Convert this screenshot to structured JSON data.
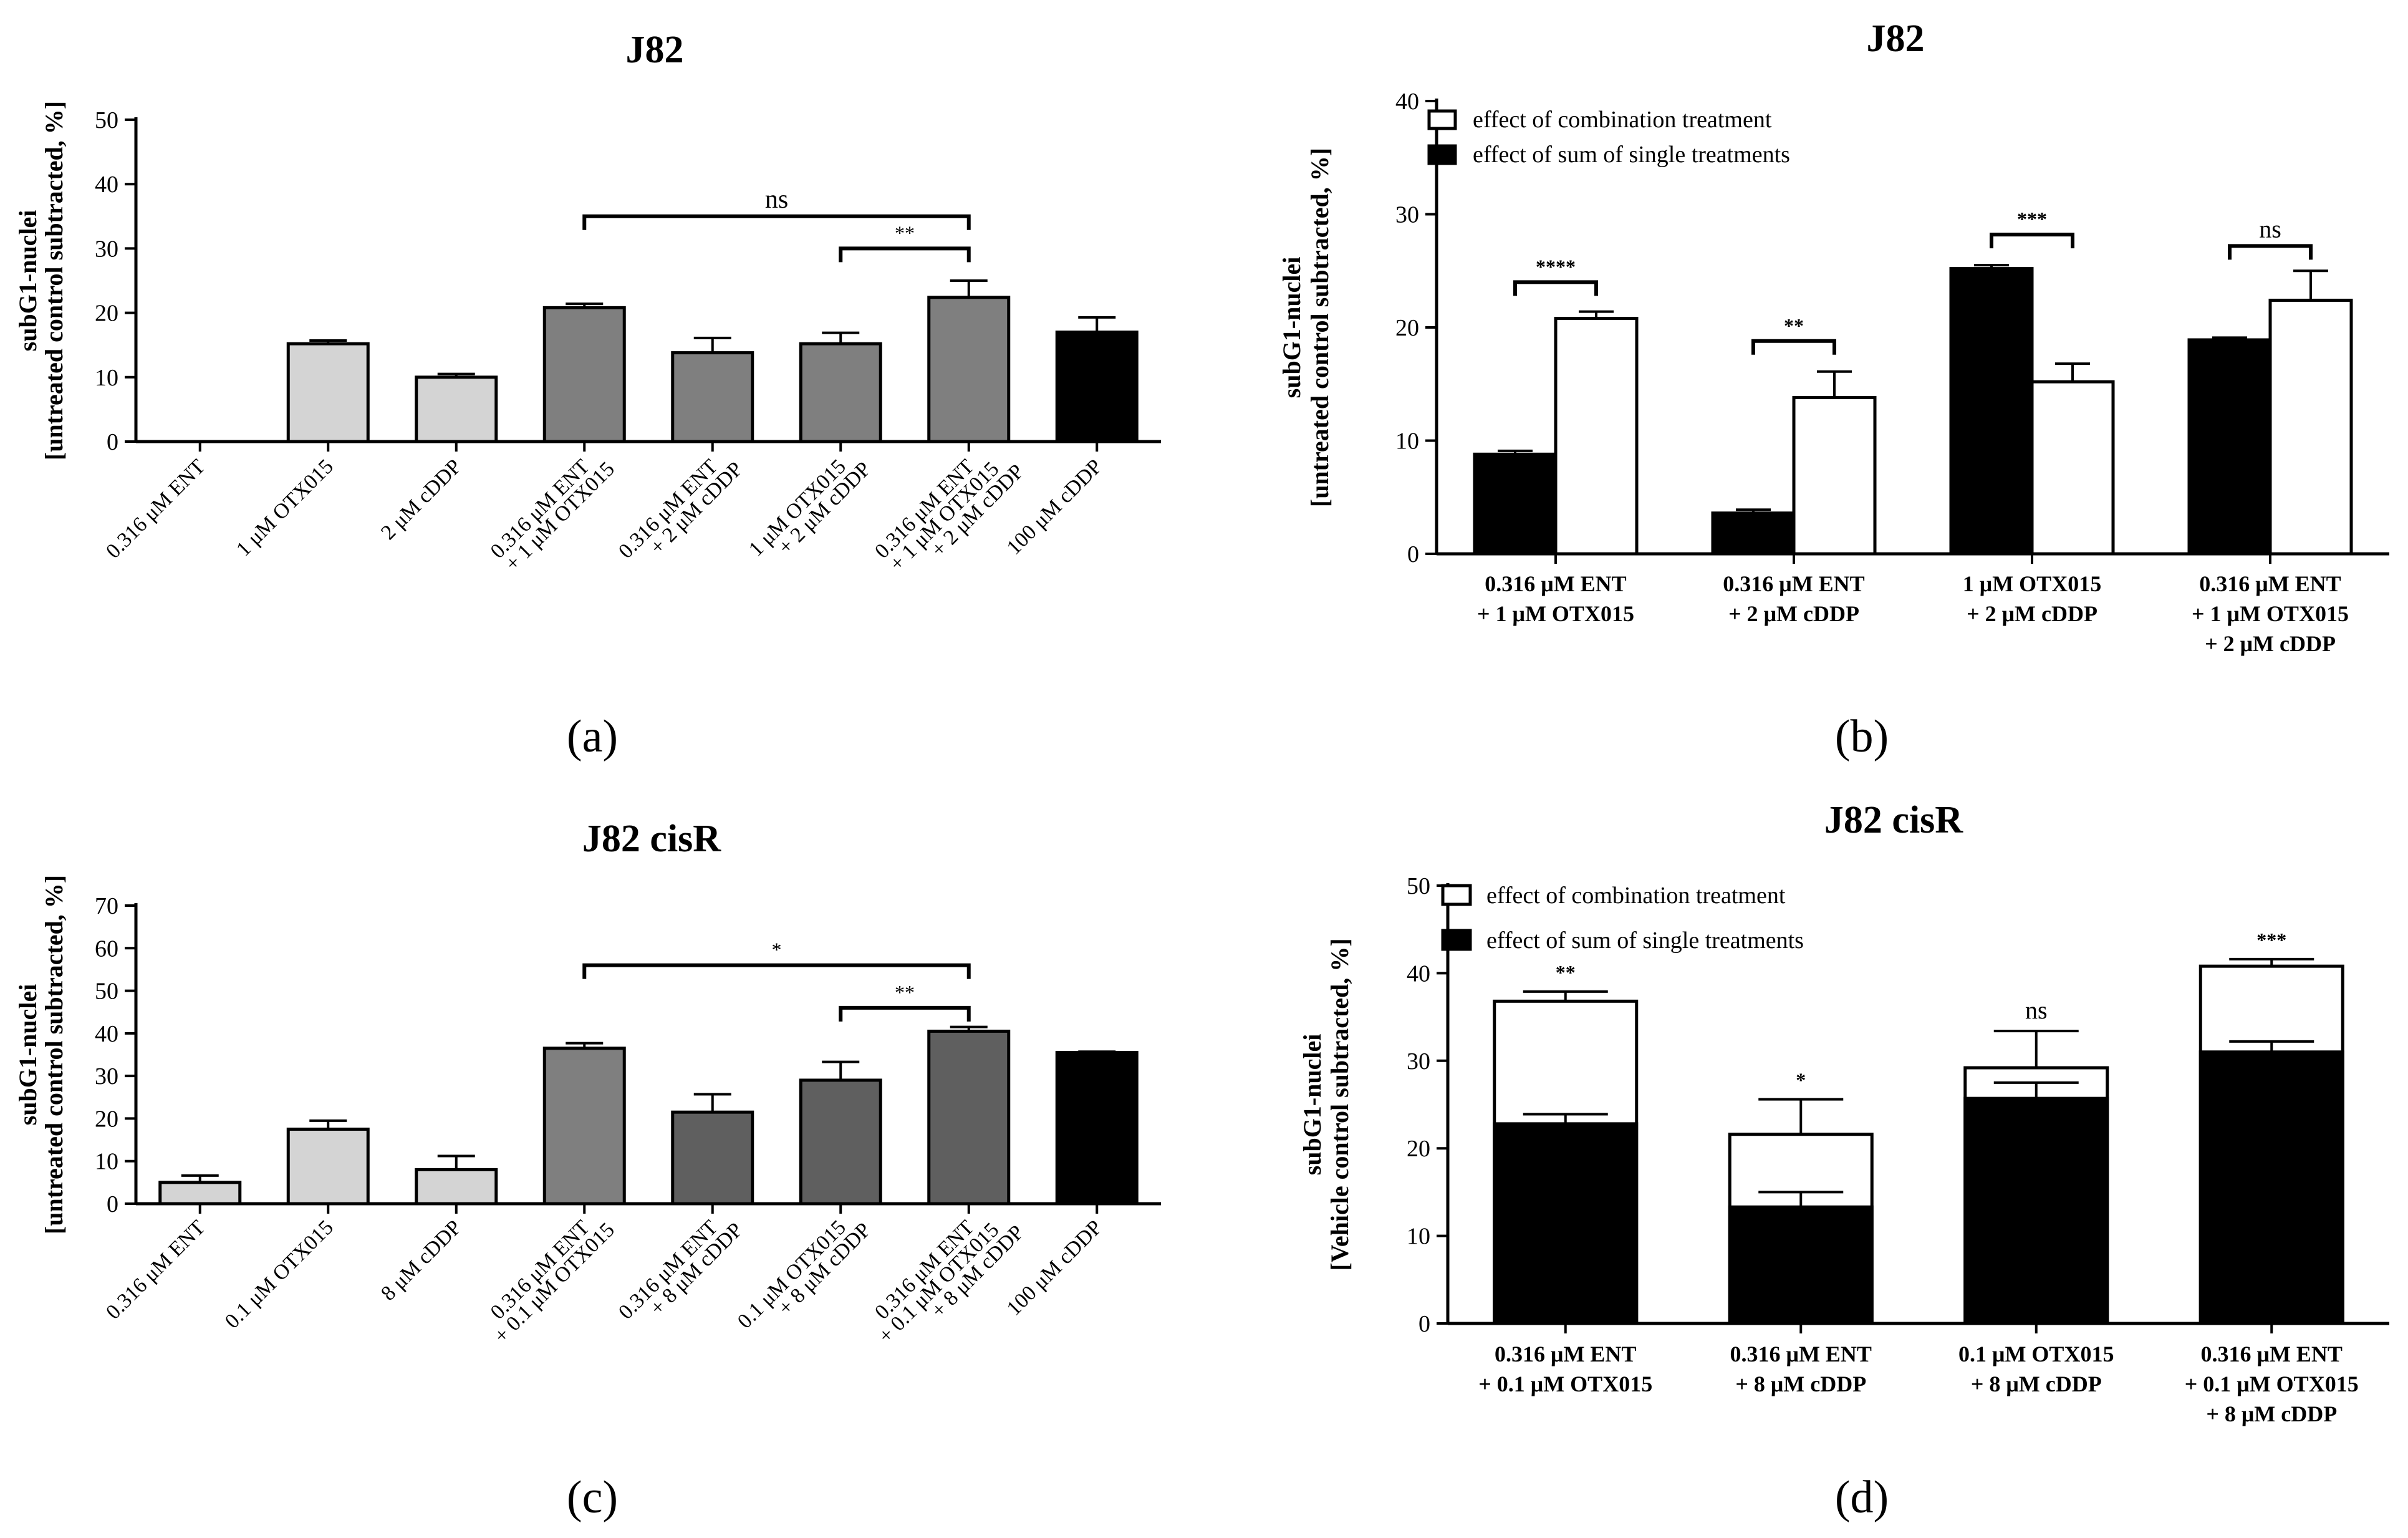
{
  "chart_data": [
    {
      "type": "bar",
      "panel_label": "(a)",
      "title": "J82",
      "ylabel": [
        "subG1-nuclei",
        "[untreated control subtracted, %]"
      ],
      "ylim": [
        0,
        50
      ],
      "yticks": [
        0,
        10,
        20,
        30,
        40,
        50
      ],
      "categories": [
        [
          "0.316 μM ENT"
        ],
        [
          "1 μM OTX015"
        ],
        [
          "2 μM cDDP"
        ],
        [
          "0.316 μM ENT",
          "+ 1 μM OTX015"
        ],
        [
          "0.316 μM ENT",
          "+ 2 μM cDDP"
        ],
        [
          "1 μM OTX015",
          "+ 2 μM cDDP"
        ],
        [
          "0.316 μM ENT",
          "+ 1 μM OTX015",
          "+ 2 μM cDDP"
        ],
        [
          "100 μM cDDP"
        ]
      ],
      "values": [
        0,
        15.2,
        10,
        20.8,
        13.8,
        15.2,
        22.4,
        17
      ],
      "errors": [
        0,
        0.5,
        0.5,
        0.6,
        2.3,
        1.7,
        2.6,
        2.3
      ],
      "colors": [
        "#d4d4d4",
        "#d4d4d4",
        "#d4d4d4",
        "#7f7f7f",
        "#7f7f7f",
        "#7f7f7f",
        "#7f7f7f",
        "#000000"
      ],
      "significance": [
        {
          "from": 3,
          "to": 6,
          "y": 35,
          "label": "ns"
        },
        {
          "from": 5,
          "to": 6,
          "y": 30,
          "label": "**"
        }
      ]
    },
    {
      "type": "bar",
      "panel_label": "(b)",
      "title": "J82",
      "ylabel": [
        "subG1-nuclei",
        "[untreated control subtracted, %]"
      ],
      "ylim": [
        0,
        40
      ],
      "yticks": [
        0,
        10,
        20,
        30,
        40
      ],
      "legend_position": "top-left",
      "categories": [
        [
          "0.316 μM ENT",
          "+ 1 μM OTX015"
        ],
        [
          "0.316 μM ENT",
          "+ 2 μM cDDP"
        ],
        [
          "1 μM OTX015",
          "+ 2 μM cDDP"
        ],
        [
          "0.316 μM ENT",
          "+ 1 μM OTX015",
          "+ 2 μM cDDP"
        ]
      ],
      "series": [
        {
          "name": "effect of sum of single treatments",
          "color": "#000000",
          "values": [
            8.8,
            3.6,
            25.2,
            18.9
          ],
          "errors": [
            0.3,
            0.3,
            0.3,
            0.2
          ]
        },
        {
          "name": "effect of combination treatment",
          "color": "#ffffff",
          "values": [
            20.8,
            13.8,
            15.2,
            22.4
          ],
          "errors": [
            0.6,
            2.3,
            1.6,
            2.6
          ]
        }
      ],
      "legend_order": [
        1,
        0
      ],
      "significance": [
        {
          "group": 0,
          "y": 24,
          "label": "****"
        },
        {
          "group": 1,
          "y": 18.8,
          "label": "**"
        },
        {
          "group": 2,
          "y": 28.2,
          "label": "***"
        },
        {
          "group": 3,
          "y": 27.2,
          "label": "ns"
        }
      ]
    },
    {
      "type": "bar",
      "panel_label": "(c)",
      "title": "J82 cisR",
      "ylabel": [
        "subG1-nuclei",
        "[untreated control subtracted, %]"
      ],
      "ylim": [
        0,
        70
      ],
      "yticks": [
        0,
        10,
        20,
        30,
        40,
        50,
        60,
        70
      ],
      "categories": [
        [
          "0.316 μM ENT"
        ],
        [
          "0.1 μM OTX015"
        ],
        [
          "8 μM cDDP"
        ],
        [
          "0.316 μM ENT",
          "+ 0.1 μM OTX015"
        ],
        [
          "0.316 μM ENT",
          "+ 8 μM cDDP"
        ],
        [
          "0.1 μM OTX015",
          "+ 8 μM cDDP"
        ],
        [
          "0.316 μM ENT",
          "+ 0.1 μM OTX015",
          "+ 8 μM cDDP"
        ],
        [
          "100 μM cDDP"
        ]
      ],
      "values": [
        5,
        17.5,
        8,
        36.5,
        21.5,
        29,
        40.5,
        35.5
      ],
      "errors": [
        1.6,
        2,
        3.2,
        1.2,
        4.2,
        4.3,
        1,
        0.2
      ],
      "colors": [
        "#d4d4d4",
        "#d4d4d4",
        "#d4d4d4",
        "#7f7f7f",
        "#5f5f5f",
        "#5f5f5f",
        "#5f5f5f",
        "#000000"
      ],
      "significance": [
        {
          "from": 3,
          "to": 6,
          "y": 56,
          "label": "*"
        },
        {
          "from": 5,
          "to": 6,
          "y": 46,
          "label": "**"
        }
      ]
    },
    {
      "type": "stacked_bar",
      "panel_label": "(d)",
      "title": "J82 cisR",
      "ylabel": [
        "subG1-nuclei",
        "[Vehicle control subtracted, %]"
      ],
      "ylim": [
        0,
        50
      ],
      "yticks": [
        0,
        10,
        20,
        30,
        40,
        50
      ],
      "legend_position": "top-left",
      "categories": [
        [
          "0.316 μM ENT",
          "+ 0.1 μM OTX015"
        ],
        [
          "0.316 μM ENT",
          "+ 8 μM cDDP"
        ],
        [
          "0.1 μM OTX015",
          "+ 8 μM cDDP"
        ],
        [
          "0.316 μM ENT",
          "+ 0.1 μM OTX015",
          "+ 8 μM cDDP"
        ]
      ],
      "series": [
        {
          "name": "effect of sum of single treatments",
          "color": "#000000",
          "values": [
            22.8,
            13.3,
            25.7,
            31
          ],
          "errors": [
            1.1,
            1.7,
            1.8,
            1.2
          ]
        },
        {
          "name": "effect of combination treatment",
          "color": "#ffffff",
          "totals": [
            36.8,
            21.6,
            29.2,
            40.8
          ],
          "errors": [
            1.1,
            4,
            4.2,
            0.8
          ]
        }
      ],
      "legend_order": [
        1,
        0
      ],
      "significance_labels": [
        "**",
        "*",
        "ns",
        "***"
      ]
    }
  ]
}
